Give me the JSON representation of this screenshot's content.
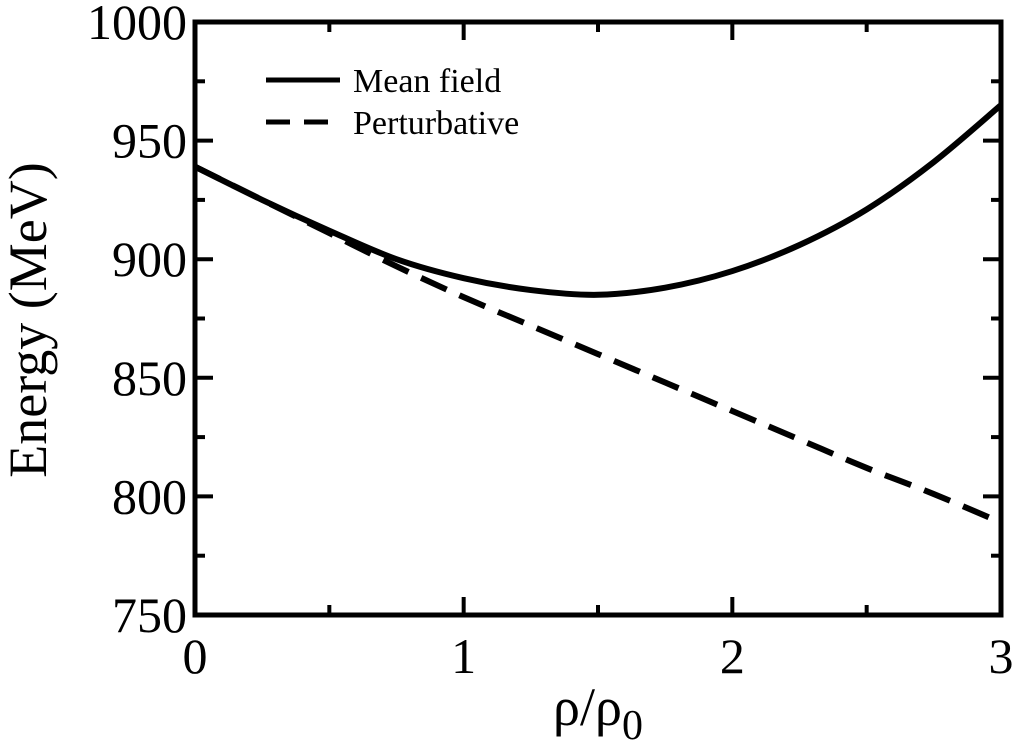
{
  "chart_data": {
    "type": "line",
    "xlabel_main": "ρ/ρ",
    "xlabel_sub": "0",
    "ylabel": "Energy (MeV)",
    "xlim": [
      0,
      3
    ],
    "ylim": [
      750,
      1000
    ],
    "x_ticks": [
      0,
      1,
      2,
      3
    ],
    "y_ticks": [
      750,
      800,
      850,
      900,
      950,
      1000
    ],
    "x_tick_labels": [
      "0",
      "1",
      "2",
      "3"
    ],
    "y_tick_labels": [
      "750",
      "800",
      "850",
      "900",
      "950",
      "1000"
    ],
    "grid": false,
    "legend_position": "top-left",
    "series": [
      {
        "name": "Mean field",
        "style": "solid",
        "color": "#000000",
        "x": [
          0,
          0.25,
          0.5,
          0.75,
          1.0,
          1.25,
          1.5,
          1.75,
          2.0,
          2.25,
          2.5,
          2.75,
          3.0
        ],
        "y": [
          939,
          925,
          912,
          900,
          892,
          887,
          885,
          888,
          895,
          906,
          921,
          941,
          965
        ]
      },
      {
        "name": "Perturbative",
        "style": "dashed",
        "color": "#000000",
        "x": [
          0,
          0.25,
          0.5,
          0.75,
          1.0,
          1.25,
          1.5,
          1.75,
          2.0,
          2.25,
          2.5,
          2.75,
          3.0
        ],
        "y": [
          939,
          925,
          911,
          897,
          884,
          872,
          860,
          848,
          836,
          824,
          812,
          801,
          789
        ]
      }
    ]
  }
}
